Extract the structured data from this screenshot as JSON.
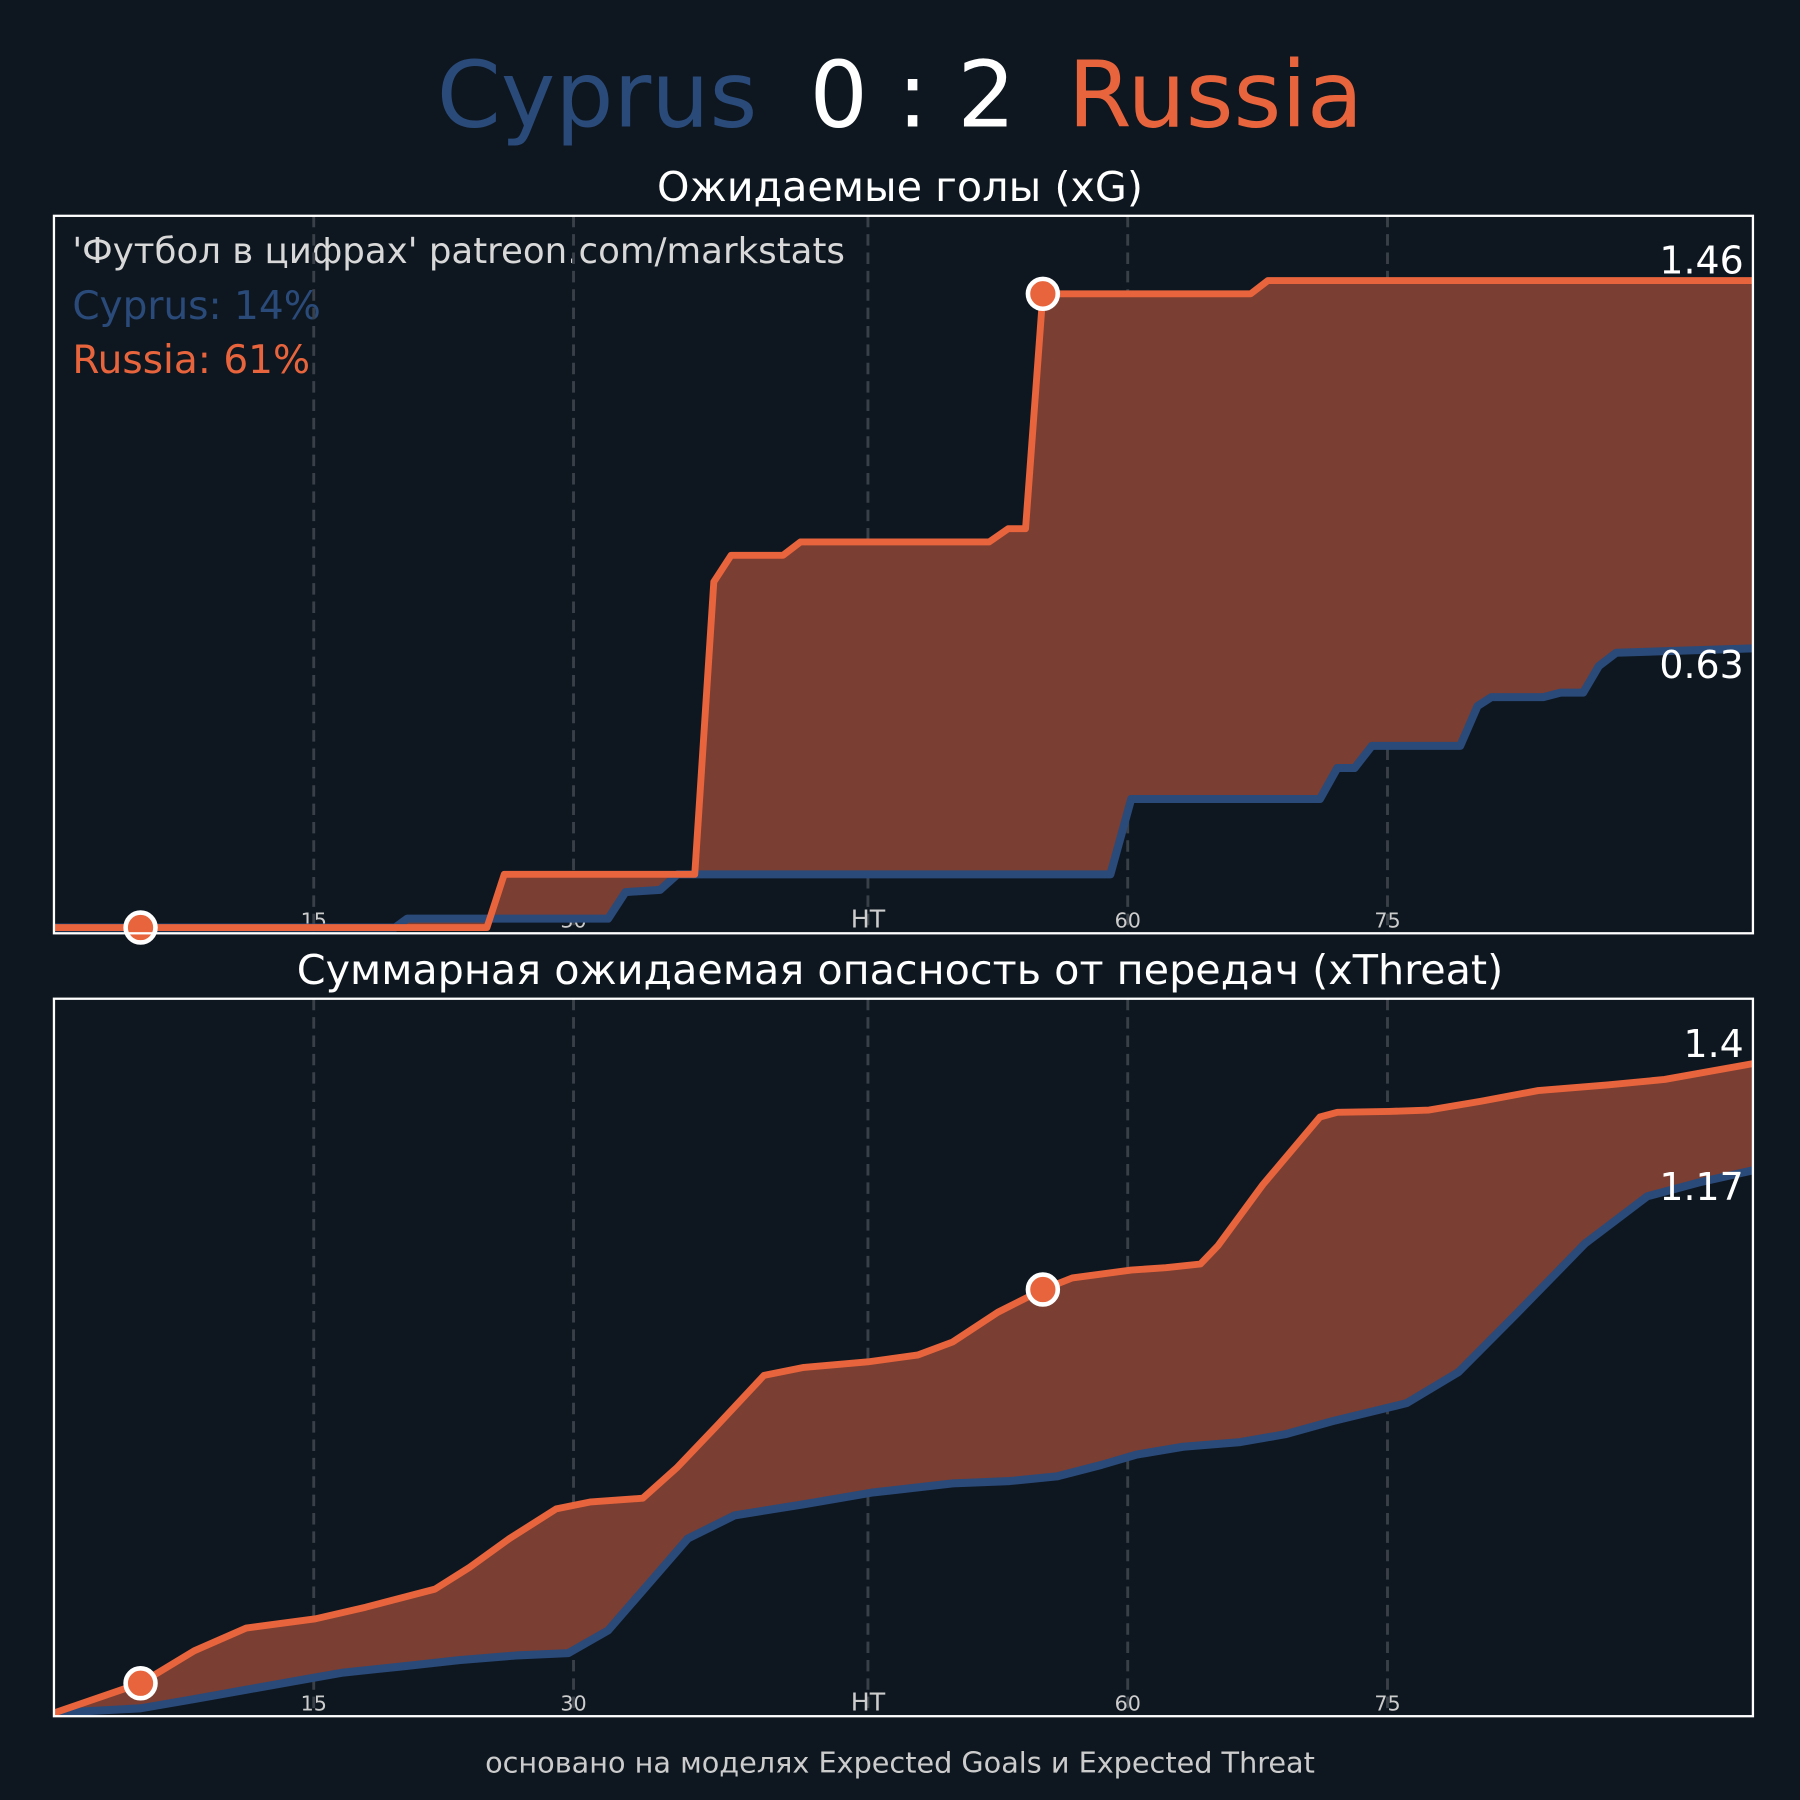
{
  "header": {
    "home": "Cyprus",
    "score": "0 : 2",
    "away": "Russia"
  },
  "watermark": "'Футбол в цифрах' patreon.com/markstats",
  "probabilities": [
    "Cyprus: 14%",
    "Russia: 61%"
  ],
  "footer": "основано на моделях Expected Goals и Expected Threat",
  "chart_data": [
    {
      "type": "line",
      "title": "Ожидаемые голы (xG)",
      "xlim": [
        0,
        98.1
      ],
      "ylim": [
        -0.013,
        1.606
      ],
      "xticks": [
        15,
        30,
        {
          "value": 47,
          "label": "HT"
        },
        {
          "value": 62,
          "label": "60"
        },
        {
          "value": 77,
          "label": "75"
        }
      ],
      "grid": true,
      "series": [
        {
          "name": "Cyprus",
          "color": "#2a4a7a",
          "x": [
            0,
            19.7,
            20.4,
            32,
            33,
            35,
            36,
            59.2,
            61,
            62.2,
            73.1,
            74.1,
            75.1,
            76.1,
            81.2,
            82.2,
            83,
            86,
            87,
            88.3,
            89.2,
            90.2,
            98.1
          ],
          "values": [
            0,
            0,
            0.02,
            0.02,
            0.08,
            0.085,
            0.12,
            0.12,
            0.12,
            0.29,
            0.29,
            0.36,
            0.36,
            0.41,
            0.41,
            0.5,
            0.52,
            0.52,
            0.53,
            0.53,
            0.59,
            0.62,
            0.63
          ]
        },
        {
          "name": "Russia",
          "color": "#e8643c",
          "x": [
            0,
            25,
            26,
            37,
            38.1,
            39.1,
            42.1,
            43.1,
            54,
            55.1,
            56.1,
            57.1,
            69.1,
            70.1,
            98.1
          ],
          "values": [
            0,
            0,
            0.12,
            0.12,
            0.78,
            0.84,
            0.84,
            0.87,
            0.87,
            0.9,
            0.9,
            1.43,
            1.43,
            1.46,
            1.46
          ]
        }
      ],
      "goals": {
        "color": "#e8643c",
        "x": [
          5,
          57.1
        ],
        "y": [
          0,
          1.43
        ]
      }
    },
    {
      "type": "line",
      "title": "Суммарная ожидаемая опасность от передач (xThreat)",
      "xlim": [
        0,
        98.1
      ],
      "ylim": [
        -0.007,
        1.54
      ],
      "xticks": [
        15,
        30,
        {
          "value": 47,
          "label": "HT"
        },
        {
          "value": 62,
          "label": "60"
        },
        {
          "value": 77,
          "label": "75"
        }
      ],
      "grid": true,
      "series": [
        {
          "name": "Cyprus",
          "color": "#2a4a7a",
          "x": [
            0,
            5,
            8.1,
            11.1,
            14.1,
            16.7,
            20,
            23.4,
            26.7,
            29.7,
            32,
            34.3,
            36.6,
            39.3,
            43.3,
            47.2,
            51.9,
            55.2,
            57.9,
            60.5,
            62.5,
            65.2,
            68.5,
            71.1,
            73.8,
            78.1,
            81.1,
            84.4,
            88.4,
            92,
            95,
            98.1
          ],
          "values": [
            0,
            0.01,
            0.03,
            0.05,
            0.07,
            0.087,
            0.1,
            0.114,
            0.124,
            0.129,
            0.178,
            0.277,
            0.376,
            0.426,
            0.45,
            0.475,
            0.495,
            0.5,
            0.51,
            0.535,
            0.557,
            0.574,
            0.584,
            0.601,
            0.629,
            0.668,
            0.735,
            0.859,
            1.012,
            1.114,
            1.144,
            1.17
          ]
        },
        {
          "name": "Russia",
          "color": "#e8643c",
          "x": [
            0,
            5,
            8.1,
            11.1,
            15.1,
            18,
            22,
            24,
            26.3,
            29,
            31,
            34,
            36,
            38.3,
            41,
            43.3,
            47,
            49.9,
            51.9,
            54.5,
            57.1,
            58.8,
            62.2,
            64.2,
            66.2,
            67.2,
            69.8,
            73.1,
            74.1,
            77.1,
            79.4,
            82.4,
            85.7,
            89.7,
            93,
            98.1
          ],
          "values": [
            0,
            0.064,
            0.134,
            0.183,
            0.203,
            0.228,
            0.267,
            0.314,
            0.376,
            0.44,
            0.455,
            0.463,
            0.53,
            0.62,
            0.728,
            0.745,
            0.757,
            0.772,
            0.8,
            0.864,
            0.913,
            0.938,
            0.955,
            0.96,
            0.968,
            1.007,
            1.139,
            1.285,
            1.295,
            1.297,
            1.3,
            1.319,
            1.342,
            1.354,
            1.366,
            1.4
          ]
        }
      ],
      "goals": {
        "color": "#e8643c",
        "x": [
          5,
          57.1
        ],
        "y": [
          0.064,
          0.913
        ]
      }
    }
  ]
}
